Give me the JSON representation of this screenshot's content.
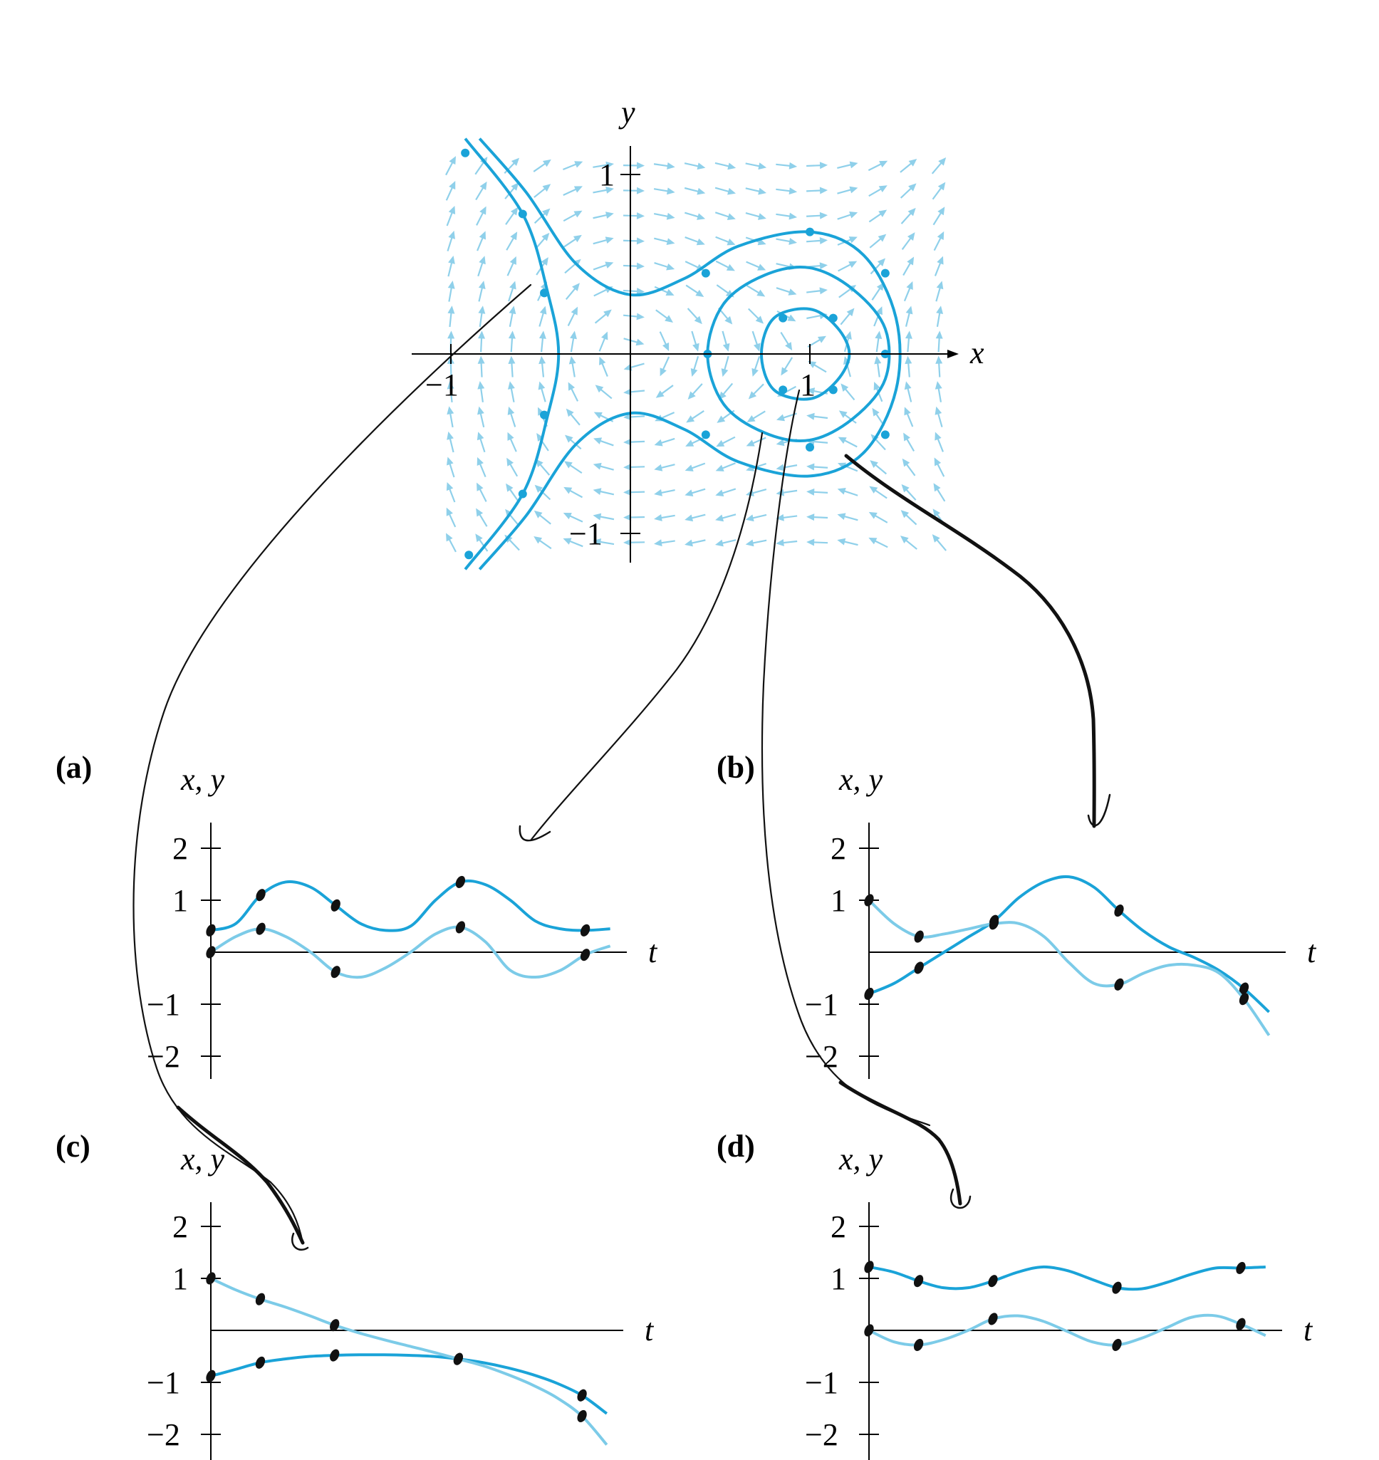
{
  "chart_data": [
    {
      "type": "vector-field",
      "description_units": "phase plane",
      "xlabel": "x",
      "ylabel": "y",
      "xlim": [
        -1.1,
        1.8
      ],
      "ylim": [
        -1.15,
        1.15
      ],
      "xticks": [
        {
          "v": -1,
          "label": "−1"
        },
        {
          "v": 1,
          "label": "1"
        }
      ],
      "yticks": [
        {
          "v": 1,
          "label": "1"
        },
        {
          "v": -1,
          "label": "−1"
        }
      ],
      "field_equation": {
        "dx": "y",
        "dy": "x^2 - x"
      },
      "grid": false,
      "orbits": [
        {
          "points": [
            [
              -0.92,
              1.2
            ],
            [
              -0.6,
              0.78
            ],
            [
              -0.46,
              0.34
            ],
            [
              -0.4,
              0.0
            ],
            [
              -0.46,
              -0.34
            ],
            [
              -0.6,
              -0.78
            ],
            [
              -0.92,
              -1.2
            ]
          ]
        },
        {
          "points": [
            [
              -0.84,
              1.2
            ],
            [
              -0.58,
              0.9
            ],
            [
              -0.3,
              0.5
            ],
            [
              0.0,
              0.33
            ],
            [
              0.3,
              0.42
            ],
            [
              0.6,
              0.6
            ],
            [
              1.0,
              0.68
            ],
            [
              1.3,
              0.55
            ],
            [
              1.48,
              0.2
            ],
            [
              1.48,
              -0.2
            ],
            [
              1.3,
              -0.55
            ],
            [
              1.0,
              -0.68
            ],
            [
              0.6,
              -0.6
            ],
            [
              0.3,
              -0.42
            ],
            [
              0.0,
              -0.33
            ],
            [
              -0.3,
              -0.5
            ],
            [
              -0.58,
              -0.9
            ],
            [
              -0.84,
              -1.2
            ]
          ]
        },
        {
          "points": [
            [
              0.43,
              0.0
            ],
            [
              0.52,
              0.28
            ],
            [
              0.75,
              0.44
            ],
            [
              1.0,
              0.48
            ],
            [
              1.24,
              0.36
            ],
            [
              1.42,
              0.14
            ],
            [
              1.42,
              -0.14
            ],
            [
              1.24,
              -0.36
            ],
            [
              1.0,
              -0.48
            ],
            [
              0.75,
              -0.44
            ],
            [
              0.52,
              -0.28
            ]
          ]
        },
        {
          "points": [
            [
              0.73,
              0.0
            ],
            [
              0.8,
              0.2
            ],
            [
              1.0,
              0.25
            ],
            [
              1.15,
              0.15
            ],
            [
              1.22,
              0.0
            ],
            [
              1.15,
              -0.15
            ],
            [
              1.0,
              -0.25
            ],
            [
              0.8,
              -0.2
            ]
          ]
        }
      ],
      "orbit_markers": [
        [
          -0.92,
          1.12
        ],
        [
          -0.6,
          0.78
        ],
        [
          -0.48,
          0.34
        ],
        [
          -0.48,
          -0.34
        ],
        [
          -0.6,
          -0.78
        ],
        [
          -0.9,
          -1.12
        ],
        [
          0.42,
          0.45
        ],
        [
          1.0,
          0.68
        ],
        [
          1.42,
          0.45
        ],
        [
          0.42,
          -0.45
        ],
        [
          1.0,
          -0.52
        ],
        [
          1.42,
          -0.45
        ],
        [
          0.43,
          0.0
        ],
        [
          1.42,
          0.0
        ],
        [
          0.85,
          0.2
        ],
        [
          1.13,
          0.2
        ],
        [
          0.85,
          -0.2
        ],
        [
          1.13,
          -0.2
        ]
      ]
    },
    {
      "type": "line",
      "panel": "(a)",
      "xlabel": "t",
      "ylabel": "x, y",
      "xlim": [
        0,
        8
      ],
      "ylim": [
        -2.5,
        2.5
      ],
      "yticks": [
        {
          "v": 2,
          "label": "2"
        },
        {
          "v": 1,
          "label": "1"
        },
        {
          "v": -1,
          "label": "−1"
        },
        {
          "v": -2,
          "label": "−2"
        }
      ],
      "series": [
        {
          "role": "x",
          "x": [
            0,
            0.5,
            1.0,
            1.5,
            2.0,
            2.5,
            3.0,
            3.5,
            4.0,
            4.5,
            5.0,
            5.5,
            6.0,
            6.5,
            7.0,
            7.5,
            8.0
          ],
          "y": [
            0.42,
            0.55,
            1.1,
            1.35,
            1.25,
            0.9,
            0.55,
            0.42,
            0.5,
            1.0,
            1.35,
            1.3,
            1.0,
            0.6,
            0.45,
            0.42,
            0.45
          ]
        },
        {
          "role": "y",
          "x": [
            0,
            0.5,
            1.0,
            1.5,
            2.0,
            2.5,
            3.0,
            3.5,
            4.0,
            4.5,
            5.0,
            5.5,
            6.0,
            6.5,
            7.0,
            7.5,
            8.0
          ],
          "y": [
            0.0,
            0.3,
            0.45,
            0.3,
            0.0,
            -0.38,
            -0.48,
            -0.3,
            0.0,
            0.35,
            0.48,
            0.2,
            -0.35,
            -0.48,
            -0.35,
            -0.05,
            0.12
          ]
        }
      ]
    },
    {
      "type": "line",
      "panel": "(b)",
      "xlabel": "t",
      "ylabel": "x, y",
      "xlim": [
        0,
        8
      ],
      "ylim": [
        -2.5,
        2.5
      ],
      "yticks": [
        {
          "v": 2,
          "label": "2"
        },
        {
          "v": 1,
          "label": "1"
        },
        {
          "v": -1,
          "label": "−1"
        },
        {
          "v": -2,
          "label": "−2"
        }
      ],
      "series": [
        {
          "role": "x",
          "x": [
            0,
            0.5,
            1.0,
            1.5,
            2.0,
            2.5,
            3.0,
            3.5,
            4.0,
            4.5,
            5.0,
            5.5,
            6.0,
            6.5,
            7.0,
            7.5,
            8.0
          ],
          "y": [
            -0.8,
            -0.6,
            -0.3,
            0.0,
            0.3,
            0.6,
            1.05,
            1.35,
            1.45,
            1.25,
            0.8,
            0.4,
            0.1,
            -0.1,
            -0.35,
            -0.7,
            -1.15
          ]
        },
        {
          "role": "y",
          "x": [
            0,
            0.5,
            1.0,
            1.5,
            2.0,
            2.5,
            3.0,
            3.5,
            4.0,
            4.5,
            5.0,
            5.5,
            6.0,
            6.5,
            7.0,
            7.5,
            8.0
          ],
          "y": [
            1.0,
            0.55,
            0.3,
            0.35,
            0.45,
            0.55,
            0.55,
            0.3,
            -0.2,
            -0.6,
            -0.62,
            -0.4,
            -0.25,
            -0.25,
            -0.4,
            -0.9,
            -1.6
          ]
        }
      ]
    },
    {
      "type": "line",
      "panel": "(c)",
      "xlabel": "t",
      "ylabel": "x, y",
      "xlim": [
        0,
        8
      ],
      "ylim": [
        -2.5,
        2.5
      ],
      "yticks": [
        {
          "v": 2,
          "label": "2"
        },
        {
          "v": 1,
          "label": "1"
        },
        {
          "v": -1,
          "label": "−1"
        },
        {
          "v": -2,
          "label": "−2"
        }
      ],
      "series": [
        {
          "role": "x",
          "x": [
            0,
            0.5,
            1.0,
            1.5,
            2.0,
            2.5,
            3.0,
            3.5,
            4.0,
            4.5,
            5.0,
            5.5,
            6.0,
            6.5,
            7.0,
            7.5,
            8.0
          ],
          "y": [
            -0.88,
            -0.75,
            -0.62,
            -0.55,
            -0.5,
            -0.48,
            -0.47,
            -0.47,
            -0.48,
            -0.5,
            -0.55,
            -0.62,
            -0.72,
            -0.85,
            -1.02,
            -1.25,
            -1.6
          ]
        },
        {
          "role": "y",
          "x": [
            0,
            0.5,
            1.0,
            1.5,
            2.0,
            2.5,
            3.0,
            3.5,
            4.0,
            4.5,
            5.0,
            5.5,
            6.0,
            6.5,
            7.0,
            7.5,
            8.0
          ],
          "y": [
            1.0,
            0.78,
            0.6,
            0.45,
            0.28,
            0.1,
            -0.05,
            -0.18,
            -0.3,
            -0.42,
            -0.55,
            -0.68,
            -0.85,
            -1.05,
            -1.3,
            -1.65,
            -2.2
          ]
        }
      ]
    },
    {
      "type": "line",
      "panel": "(d)",
      "xlabel": "t",
      "ylabel": "x, y",
      "xlim": [
        0,
        8
      ],
      "ylim": [
        -2.5,
        2.5
      ],
      "yticks": [
        {
          "v": 2,
          "label": "2"
        },
        {
          "v": 1,
          "label": "1"
        },
        {
          "v": -1,
          "label": "−1"
        },
        {
          "v": -2,
          "label": "−2"
        }
      ],
      "series": [
        {
          "role": "x",
          "x": [
            0,
            0.5,
            1.0,
            1.5,
            2.0,
            2.5,
            3.0,
            3.5,
            4.0,
            4.5,
            5.0,
            5.5,
            6.0,
            6.5,
            7.0,
            7.5,
            8.0
          ],
          "y": [
            1.22,
            1.12,
            0.95,
            0.82,
            0.82,
            0.95,
            1.12,
            1.22,
            1.15,
            0.98,
            0.82,
            0.8,
            0.92,
            1.08,
            1.2,
            1.2,
            1.22
          ]
        },
        {
          "role": "y",
          "x": [
            0,
            0.5,
            1.0,
            1.5,
            2.0,
            2.5,
            3.0,
            3.5,
            4.0,
            4.5,
            5.0,
            5.5,
            6.0,
            6.5,
            7.0,
            7.5,
            8.0
          ],
          "y": [
            0.0,
            -0.22,
            -0.28,
            -0.18,
            0.0,
            0.22,
            0.28,
            0.18,
            -0.02,
            -0.22,
            -0.28,
            -0.15,
            0.05,
            0.25,
            0.28,
            0.12,
            -0.1
          ]
        }
      ]
    }
  ]
}
